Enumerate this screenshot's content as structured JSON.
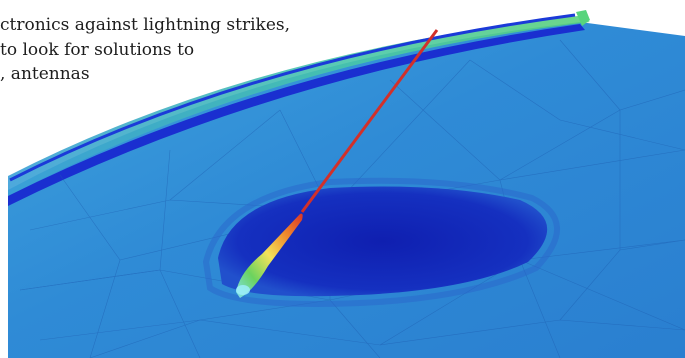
{
  "caption": {
    "lines": [
      "ctronics against lightning strikes,",
      "to look for solutions to",
      ", antennas"
    ]
  },
  "colors": {
    "surface": "#2f8bd6",
    "surface_light": "#4aa6de",
    "dark_region": "#1228b8",
    "edge_band": "#1b2fd0",
    "edge_green": "#4fd07a",
    "strike": "#d2302a",
    "hotspot_yellow": "#f3e35a",
    "hotspot_green": "#5cd15c"
  },
  "icons": {
    "scene": "lightning-strike-simulation"
  }
}
